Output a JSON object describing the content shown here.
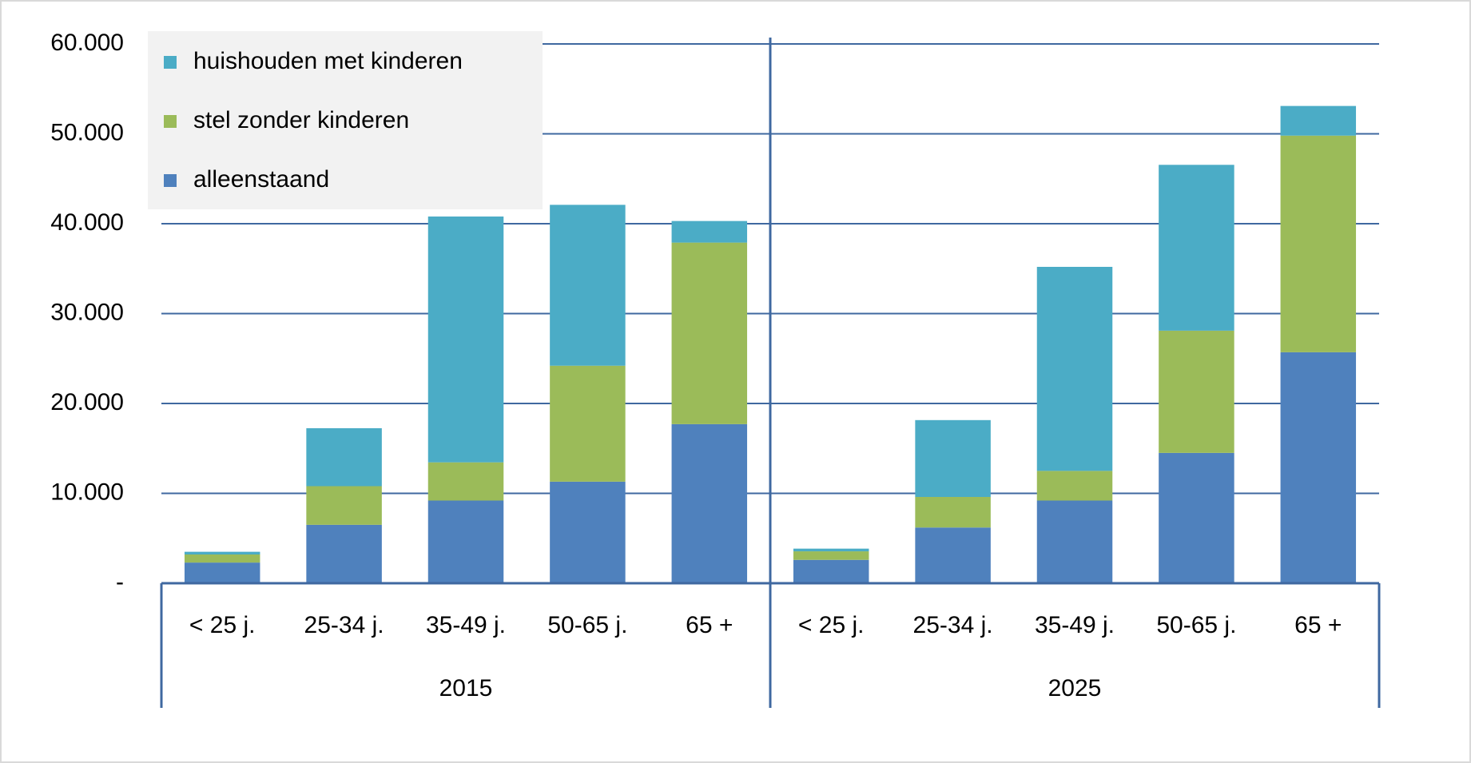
{
  "chart_data": {
    "type": "stacked_bar",
    "groups": [
      "2015",
      "2025"
    ],
    "categories": [
      "< 25 j.",
      "25-34 j.",
      "35-49 j.",
      "50-65 j.",
      "65 +",
      "< 25 j.",
      "25-34 j.",
      "35-49 j.",
      "50-65 j.",
      "65 +"
    ],
    "series": [
      {
        "name": "alleenstaand",
        "color": "#4f81bd",
        "values": [
          2300,
          6500,
          9200,
          11300,
          17700,
          2600,
          6200,
          9200,
          14500,
          25700
        ]
      },
      {
        "name": "stel zonder kinderen",
        "color": "#9bbb59",
        "values": [
          900,
          4300,
          4250,
          12900,
          20200,
          950,
          3400,
          3300,
          13600,
          24100
        ]
      },
      {
        "name": "huishouden met kinderen",
        "color": "#4bacc6",
        "values": [
          300,
          6450,
          27350,
          17900,
          2400,
          300,
          8550,
          22700,
          18450,
          3300
        ]
      }
    ],
    "ylim": [
      0,
      60000
    ],
    "yticks": [
      {
        "value": 0,
        "label": "-"
      },
      {
        "value": 10000,
        "label": "10.000"
      },
      {
        "value": 20000,
        "label": "20.000"
      },
      {
        "value": 30000,
        "label": "30.000"
      },
      {
        "value": 40000,
        "label": "40.000"
      },
      {
        "value": 50000,
        "label": "50.000"
      },
      {
        "value": 60000,
        "label": "60.000"
      }
    ],
    "grid": true,
    "legend": "top-left"
  }
}
